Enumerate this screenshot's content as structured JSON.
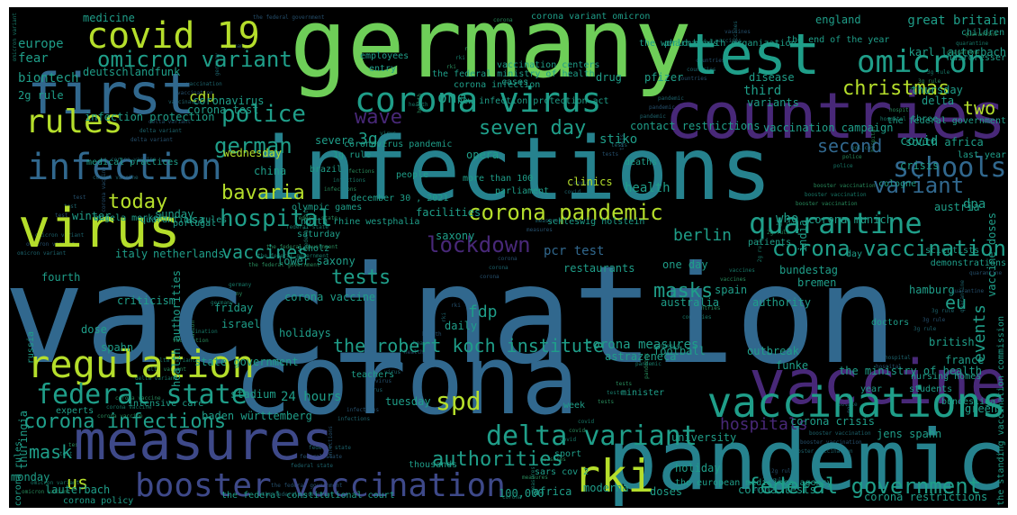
{
  "palette": {
    "background": "#000000",
    "yellow": "#b5de2b",
    "lime": "#6ece58",
    "green": "#35b779",
    "teal": "#1f9e89",
    "cyan": "#26828e",
    "blue": "#31688e",
    "indigo": "#3e4989",
    "purple": "#482878",
    "dark": "#440154"
  },
  "words": [
    {
      "text": "vaccination",
      "color": "blue"
    },
    {
      "text": "infections",
      "color": "cyan"
    },
    {
      "text": "germany",
      "color": "lime"
    },
    {
      "text": "corona",
      "color": "blue"
    },
    {
      "text": "pandemic",
      "color": "cyan"
    },
    {
      "text": "countries",
      "color": "purple"
    },
    {
      "text": "vaccine",
      "color": "purple"
    },
    {
      "text": "test",
      "color": "teal"
    },
    {
      "text": "measures",
      "color": "indigo"
    },
    {
      "text": "virus",
      "color": "yellow"
    },
    {
      "text": "first",
      "color": "blue"
    },
    {
      "text": "vaccinations",
      "color": "teal"
    },
    {
      "text": "rki",
      "color": "yellow"
    },
    {
      "text": "covid 19",
      "color": "yellow"
    },
    {
      "text": "corona virus",
      "color": "teal"
    },
    {
      "text": "infection",
      "color": "blue"
    },
    {
      "text": "omicron",
      "color": "teal"
    },
    {
      "text": "regulation",
      "color": "yellow"
    },
    {
      "text": "booster vaccination",
      "color": "indigo"
    },
    {
      "text": "rules",
      "color": "yellow"
    },
    {
      "text": "quarantine",
      "color": "teal"
    },
    {
      "text": "delta variant",
      "color": "teal"
    },
    {
      "text": "federal state",
      "color": "teal"
    },
    {
      "text": "corona vaccination",
      "color": "teal"
    },
    {
      "text": "corona infections",
      "color": "teal"
    },
    {
      "text": "corona pandemic",
      "color": "yellow"
    },
    {
      "text": "omicron variant",
      "color": "teal"
    },
    {
      "text": "schools",
      "color": "blue"
    },
    {
      "text": "hospital",
      "color": "teal"
    },
    {
      "text": "federal government",
      "color": "teal"
    },
    {
      "text": "lockdown",
      "color": "purple"
    },
    {
      "text": "variant",
      "color": "blue"
    },
    {
      "text": "the robert koch institute",
      "color": "teal"
    },
    {
      "text": "spd",
      "color": "yellow"
    },
    {
      "text": "police",
      "color": "teal"
    },
    {
      "text": "german",
      "color": "teal"
    },
    {
      "text": "vaccines",
      "color": "teal"
    },
    {
      "text": "bavaria",
      "color": "yellow"
    },
    {
      "text": "today",
      "color": "yellow"
    },
    {
      "text": "christmas",
      "color": "yellow"
    },
    {
      "text": "two",
      "color": "yellow"
    },
    {
      "text": "tests",
      "color": "teal"
    },
    {
      "text": "second",
      "color": "blue"
    },
    {
      "text": "seven day",
      "color": "teal"
    },
    {
      "text": "wave",
      "color": "purple"
    },
    {
      "text": "masks",
      "color": "teal"
    },
    {
      "text": "authorities",
      "color": "teal"
    },
    {
      "text": "hospitals",
      "color": "purple"
    },
    {
      "text": "mask",
      "color": "teal"
    },
    {
      "text": "us",
      "color": "yellow"
    },
    {
      "text": "eu",
      "color": "teal"
    },
    {
      "text": "berlin",
      "color": "teal"
    },
    {
      "text": "cdu",
      "color": "yellow"
    },
    {
      "text": "biontech",
      "color": "teal"
    },
    {
      "text": "fear",
      "color": "teal"
    },
    {
      "text": "europe",
      "color": "teal"
    },
    {
      "text": "2g rule",
      "color": "teal"
    },
    {
      "text": "one",
      "color": "teal"
    },
    {
      "text": "3g",
      "color": "teal"
    },
    {
      "text": "fdp",
      "color": "teal"
    },
    {
      "text": "events",
      "color": "teal"
    },
    {
      "text": "pcr test",
      "color": "blue"
    },
    {
      "text": "stiko",
      "color": "teal"
    },
    {
      "text": "third",
      "color": "teal"
    },
    {
      "text": "covid",
      "color": "teal"
    },
    {
      "text": "great britain",
      "color": "teal"
    },
    {
      "text": "karl lauterbach",
      "color": "teal"
    },
    {
      "text": "england",
      "color": "teal"
    },
    {
      "text": "medicine",
      "color": "teal"
    },
    {
      "text": "pfizer",
      "color": "teal"
    },
    {
      "text": "drug",
      "color": "teal"
    },
    {
      "text": "disease",
      "color": "teal"
    },
    {
      "text": "delta",
      "color": "teal"
    },
    {
      "text": "thursday",
      "color": "teal"
    },
    {
      "text": "variants",
      "color": "teal"
    },
    {
      "text": "coronavirus",
      "color": "teal"
    },
    {
      "text": "corona test",
      "color": "teal"
    },
    {
      "text": "deutschlandfunk",
      "color": "teal"
    },
    {
      "text": "infection protection",
      "color": "teal"
    },
    {
      "text": "sunday",
      "color": "teal"
    },
    {
      "text": "usa",
      "color": "teal"
    },
    {
      "text": "wednesday",
      "color": "yellow"
    },
    {
      "text": "north rhine westphalia",
      "color": "teal"
    },
    {
      "text": "severe",
      "color": "teal"
    },
    {
      "text": "coronavirus pandemic",
      "color": "teal"
    },
    {
      "text": "contact restrictions",
      "color": "teal"
    },
    {
      "text": "vaccination campaign",
      "color": "teal"
    },
    {
      "text": "south africa",
      "color": "teal"
    },
    {
      "text": "crisis",
      "color": "teal"
    },
    {
      "text": "last year",
      "color": "teal"
    },
    {
      "text": "india",
      "color": "teal"
    },
    {
      "text": "health",
      "color": "teal"
    },
    {
      "text": "clinics",
      "color": "yellow"
    },
    {
      "text": "opera",
      "color": "teal"
    },
    {
      "text": "winter",
      "color": "teal"
    },
    {
      "text": "china",
      "color": "teal"
    },
    {
      "text": "austria",
      "color": "teal"
    },
    {
      "text": "dpa",
      "color": "teal"
    },
    {
      "text": "who",
      "color": "teal"
    },
    {
      "text": "vaccine doses",
      "color": "teal"
    },
    {
      "text": "facilities",
      "color": "teal"
    },
    {
      "text": "saxony",
      "color": "teal"
    },
    {
      "text": "saturday",
      "color": "teal"
    },
    {
      "text": "italy",
      "color": "teal"
    },
    {
      "text": "netherlands",
      "color": "teal"
    },
    {
      "text": "fourth",
      "color": "teal"
    },
    {
      "text": "lower saxony",
      "color": "teal"
    },
    {
      "text": "restaurants",
      "color": "teal"
    },
    {
      "text": "corona munich",
      "color": "teal"
    },
    {
      "text": "bundestag",
      "color": "teal"
    },
    {
      "text": "one day",
      "color": "teal"
    },
    {
      "text": "hamburg",
      "color": "teal"
    },
    {
      "text": "bremen",
      "color": "teal"
    },
    {
      "text": "spain",
      "color": "teal"
    },
    {
      "text": "authority",
      "color": "teal"
    },
    {
      "text": "australia",
      "color": "teal"
    },
    {
      "text": "criticism",
      "color": "teal"
    },
    {
      "text": "friday",
      "color": "teal"
    },
    {
      "text": "corona vaccine",
      "color": "teal"
    },
    {
      "text": "israel",
      "color": "teal"
    },
    {
      "text": "health authorities",
      "color": "teal"
    },
    {
      "text": "dose",
      "color": "teal"
    },
    {
      "text": "daily",
      "color": "teal"
    },
    {
      "text": "holidays",
      "color": "teal"
    },
    {
      "text": "spahn",
      "color": "teal"
    },
    {
      "text": "state government",
      "color": "teal"
    },
    {
      "text": "russia",
      "color": "teal"
    },
    {
      "text": "corona measures",
      "color": "teal"
    },
    {
      "text": "astrazeneca",
      "color": "teal"
    },
    {
      "text": "outbreak",
      "color": "teal"
    },
    {
      "text": "funke",
      "color": "teal"
    },
    {
      "text": "british",
      "color": "teal"
    },
    {
      "text": "the ministry of health",
      "color": "teal"
    },
    {
      "text": "greens",
      "color": "teal"
    },
    {
      "text": "football",
      "color": "teal"
    },
    {
      "text": "france",
      "color": "teal"
    },
    {
      "text": "24 hours",
      "color": "teal"
    },
    {
      "text": "stadium",
      "color": "teal"
    },
    {
      "text": "tuesday",
      "color": "teal"
    },
    {
      "text": "baden württemberg",
      "color": "teal"
    },
    {
      "text": "thuringia",
      "color": "teal"
    },
    {
      "text": "university",
      "color": "teal"
    },
    {
      "text": "jens spahn",
      "color": "teal"
    },
    {
      "text": "corona crisis",
      "color": "teal"
    },
    {
      "text": "monday",
      "color": "teal"
    },
    {
      "text": "lauterbach",
      "color": "teal"
    },
    {
      "text": "100,000",
      "color": "teal"
    },
    {
      "text": "moderna",
      "color": "teal"
    },
    {
      "text": "africa",
      "color": "teal"
    },
    {
      "text": "doses",
      "color": "teal"
    },
    {
      "text": "corona tests",
      "color": "teal"
    },
    {
      "text": "corona restrictions",
      "color": "teal"
    },
    {
      "text": "sars cov 2",
      "color": "teal"
    },
    {
      "text": "sport",
      "color": "teal"
    },
    {
      "text": "holiday",
      "color": "teal"
    },
    {
      "text": "corona infection",
      "color": "teal"
    },
    {
      "text": "corona rules",
      "color": "teal"
    },
    {
      "text": "the standing vaccination commission",
      "color": "teal"
    },
    {
      "text": "the federal constitutional court",
      "color": "teal"
    },
    {
      "text": "thousands",
      "color": "teal"
    },
    {
      "text": "corona variant omicron",
      "color": "teal"
    },
    {
      "text": "the world health organization",
      "color": "teal"
    },
    {
      "text": "the end of the year",
      "color": "teal"
    },
    {
      "text": "new infection protection act",
      "color": "teal"
    },
    {
      "text": "three",
      "color": "teal"
    },
    {
      "text": "corona policy",
      "color": "teal"
    },
    {
      "text": "the european medicines agency",
      "color": "teal"
    },
    {
      "text": "the federal ministry of health",
      "color": "teal"
    },
    {
      "text": "schleswig holstein",
      "color": "teal"
    },
    {
      "text": "angela merkel",
      "color": "teal"
    },
    {
      "text": "december 30 , 2021",
      "color": "teal"
    },
    {
      "text": "more than 100",
      "color": "teal"
    },
    {
      "text": "vaccination centers",
      "color": "teal"
    },
    {
      "text": "the federal government",
      "color": "teal"
    },
    {
      "text": "pharmacies",
      "color": "teal"
    },
    {
      "text": "1g rule",
      "color": "teal"
    },
    {
      "text": "olympic games",
      "color": "teal"
    },
    {
      "text": "scholz",
      "color": "teal"
    },
    {
      "text": "brazil",
      "color": "teal"
    },
    {
      "text": "portugal",
      "color": "teal"
    },
    {
      "text": "cologne",
      "color": "teal"
    },
    {
      "text": "scientists",
      "color": "teal"
    },
    {
      "text": "bundesliga",
      "color": "teal"
    },
    {
      "text": "quarantine rules",
      "color": "teal"
    },
    {
      "text": "medical practices",
      "color": "teal"
    },
    {
      "text": "hairdresser",
      "color": "teal"
    },
    {
      "text": "children",
      "color": "teal"
    },
    {
      "text": "employees",
      "color": "teal"
    },
    {
      "text": "entry",
      "color": "teal"
    },
    {
      "text": "minister",
      "color": "teal"
    },
    {
      "text": "parliament",
      "color": "teal"
    },
    {
      "text": "demonstrations",
      "color": "teal"
    },
    {
      "text": "experts",
      "color": "teal"
    },
    {
      "text": "intensive care",
      "color": "teal"
    },
    {
      "text": "nursing homes",
      "color": "teal"
    },
    {
      "text": "students",
      "color": "teal"
    },
    {
      "text": "teachers",
      "color": "teal"
    },
    {
      "text": "year",
      "color": "teal"
    },
    {
      "text": "week",
      "color": "teal"
    },
    {
      "text": "day",
      "color": "teal"
    },
    {
      "text": "people",
      "color": "teal"
    },
    {
      "text": "cases",
      "color": "teal"
    },
    {
      "text": "deaths",
      "color": "teal"
    },
    {
      "text": "patients",
      "color": "teal"
    },
    {
      "text": "doctors",
      "color": "teal"
    }
  ]
}
